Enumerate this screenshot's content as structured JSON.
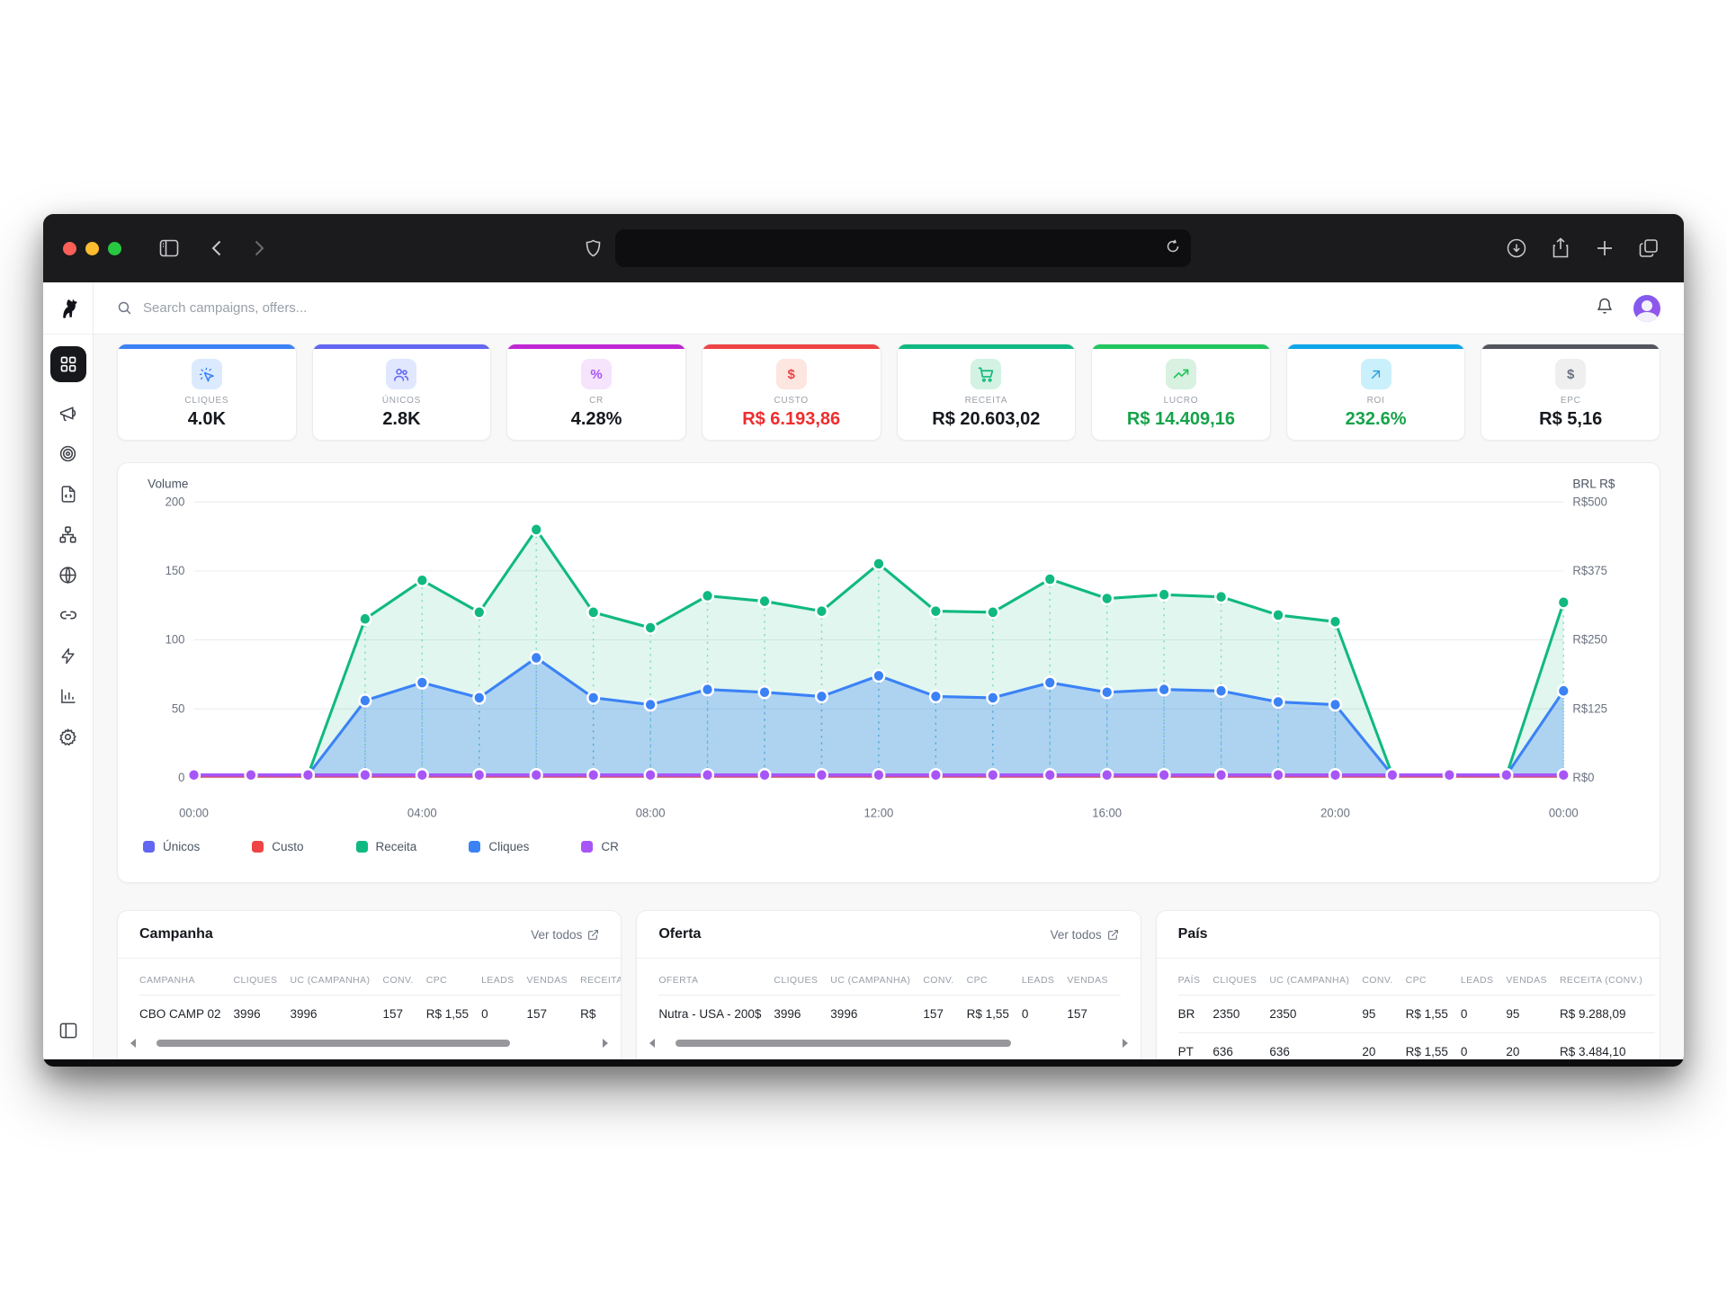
{
  "browser": {
    "traffic_lights": [
      "#ff5f57",
      "#febc2e",
      "#28c840"
    ],
    "toolbar_icons": [
      "sidebar-toggle-icon",
      "back-icon",
      "forward-icon",
      "shield-icon",
      "reload-icon",
      "download-icon",
      "share-icon",
      "new-tab-icon",
      "tabs-overview-icon"
    ],
    "url_value": ""
  },
  "header": {
    "search_placeholder": "Search campaigns, offers...",
    "icons": [
      "search-icon",
      "bell-icon",
      "avatar"
    ]
  },
  "sidebar": {
    "items": [
      "dashboard",
      "campaigns",
      "targets",
      "scripts",
      "structure",
      "domains",
      "links",
      "automation",
      "reports",
      "settings"
    ],
    "active": "dashboard",
    "bottom_icon": "panel-collapse-icon"
  },
  "stat_cards": [
    {
      "label": "CLIQUES",
      "value": "4.0K",
      "accent": "#3b82f6",
      "value_color": "#15181d",
      "icon": "cursor-click-icon",
      "icon_bg": "#dbeafe",
      "icon_color": "#3b82f6"
    },
    {
      "label": "ÚNICOS",
      "value": "2.8K",
      "accent": "#6366f1",
      "value_color": "#15181d",
      "icon": "users-icon",
      "icon_bg": "#e0e7ff",
      "icon_color": "#6366f1"
    },
    {
      "label": "CR",
      "value": "4.28%",
      "accent": "#c026d3",
      "value_color": "#15181d",
      "icon": "percent-icon",
      "icon_bg": "#f5e4fb",
      "icon_color": "#a855f7"
    },
    {
      "label": "CUSTO",
      "value": "R$ 6.193,86",
      "accent": "#ef4444",
      "value_color": "#ef2d2d",
      "icon": "dollar-icon",
      "icon_bg": "#fde5e0",
      "icon_color": "#ef4444"
    },
    {
      "label": "RECEITA",
      "value": "R$ 20.603,02",
      "accent": "#10b981",
      "value_color": "#15181d",
      "icon": "cart-icon",
      "icon_bg": "#d3f2e3",
      "icon_color": "#10b981"
    },
    {
      "label": "LUCRO",
      "value": "R$ 14.409,16",
      "accent": "#22c55e",
      "value_color": "#16a34a",
      "icon": "trending-up-icon",
      "icon_bg": "#d8f1e0",
      "icon_color": "#22c55e"
    },
    {
      "label": "ROI",
      "value": "232.6%",
      "accent": "#0ea5e9",
      "value_color": "#16a34a",
      "icon": "arrow-up-right-icon",
      "icon_bg": "#c9f0fb",
      "icon_color": "#2d9fd8"
    },
    {
      "label": "EPC",
      "value": "R$ 5,16",
      "accent": "#52555c",
      "value_color": "#15181d",
      "icon": "dollar-icon",
      "icon_bg": "#efefef",
      "icon_color": "#6b7280"
    }
  ],
  "chart_data": {
    "type": "line",
    "left_axis": {
      "title": "Volume",
      "ticks": [
        0,
        50,
        100,
        150,
        200
      ],
      "max": 200
    },
    "right_axis": {
      "title": "BRL R$",
      "ticks": [
        "R$0",
        "R$125",
        "R$250",
        "R$375",
        "R$500"
      ],
      "max": 500
    },
    "x_tick_labels": [
      "00:00",
      "04:00",
      "08:00",
      "12:00",
      "16:00",
      "20:00",
      "00:00"
    ],
    "x_tick_indices": [
      0,
      4,
      8,
      12,
      16,
      20,
      24
    ],
    "points": 25,
    "series": [
      {
        "name": "Únicos",
        "color": "#6366f1",
        "axis": "left",
        "width": 2.5,
        "dots": false,
        "fill": null,
        "values": [
          2,
          2,
          2,
          2,
          2,
          2,
          2,
          2,
          2,
          2,
          2,
          2,
          2,
          2,
          2,
          2,
          2,
          2,
          2,
          2,
          2,
          2,
          2,
          2,
          2
        ]
      },
      {
        "name": "Custo",
        "color": "#ef4444",
        "axis": "left",
        "width": 2.5,
        "dots": false,
        "fill": null,
        "values": [
          1,
          1,
          1,
          1,
          1,
          1,
          1,
          1,
          1,
          1,
          1,
          1,
          1,
          1,
          1,
          1,
          1,
          1,
          1,
          1,
          1,
          1,
          1,
          1,
          1
        ]
      },
      {
        "name": "Receita",
        "color": "#10b981",
        "axis": "right",
        "width": 3,
        "dots": true,
        "fill": "rgba(16,185,129,0.13)",
        "values": [
          5,
          5,
          5,
          288,
          358,
          300,
          450,
          300,
          272,
          330,
          320,
          302,
          388,
          302,
          300,
          360,
          325,
          332,
          328,
          295,
          283,
          5,
          5,
          5,
          318
        ]
      },
      {
        "name": "Cliques",
        "color": "#3b82f6",
        "axis": "left",
        "width": 3,
        "dots": true,
        "fill": "rgba(59,130,246,0.30)",
        "values": [
          2,
          2,
          2,
          56,
          69,
          58,
          87,
          58,
          53,
          64,
          62,
          59,
          74,
          59,
          58,
          69,
          62,
          64,
          63,
          55,
          53,
          2,
          2,
          2,
          63
        ]
      },
      {
        "name": "CR",
        "color": "#a855f7",
        "axis": "left",
        "width": 3.5,
        "dots": true,
        "fill": null,
        "values": [
          2,
          2,
          2,
          2,
          2,
          2,
          2,
          2,
          2,
          2,
          2,
          2,
          2,
          2,
          2,
          2,
          2,
          2,
          2,
          2,
          2,
          2,
          2,
          2,
          2
        ]
      }
    ],
    "legend": [
      {
        "label": "Únicos",
        "color": "#6366f1"
      },
      {
        "label": "Custo",
        "color": "#ef4444"
      },
      {
        "label": "Receita",
        "color": "#10b981"
      },
      {
        "label": "Cliques",
        "color": "#3b82f6"
      },
      {
        "label": "CR",
        "color": "#a855f7"
      }
    ]
  },
  "tables": [
    {
      "title": "Campanha",
      "link_label": "Ver todos",
      "has_link": true,
      "has_scrollbar": true,
      "thumb": [
        3,
        78
      ],
      "headers": [
        "CAMPANHA",
        "CLIQUES",
        "UC (CAMPANHA)",
        "CONV.",
        "CPC",
        "LEADS",
        "VENDAS",
        "RECEITA"
      ],
      "rows": [
        [
          "CBO CAMP 02",
          "3996",
          "3996",
          "157",
          "R$ 1,55",
          "0",
          "157",
          "R$"
        ]
      ]
    },
    {
      "title": "Oferta",
      "link_label": "Ver todos",
      "has_link": true,
      "has_scrollbar": true,
      "thumb": [
        3,
        74
      ],
      "headers": [
        "OFERTA",
        "CLIQUES",
        "UC (CAMPANHA)",
        "CONV.",
        "CPC",
        "LEADS",
        "VENDAS"
      ],
      "rows": [
        [
          "Nutra - USA - 200$",
          "3996",
          "3996",
          "157",
          "R$ 1,55",
          "0",
          "157"
        ]
      ]
    },
    {
      "title": "País",
      "link_label": "",
      "has_link": false,
      "has_scrollbar": false,
      "thumb": null,
      "headers": [
        "PAÍS",
        "CLIQUES",
        "UC (CAMPANHA)",
        "CONV.",
        "CPC",
        "LEADS",
        "VENDAS",
        "RECEITA (CONV.)"
      ],
      "rows": [
        [
          "BR",
          "2350",
          "2350",
          "95",
          "R$ 1,55",
          "0",
          "95",
          "R$ 9.288,09"
        ],
        [
          "PT",
          "636",
          "636",
          "20",
          "R$ 1,55",
          "0",
          "20",
          "R$ 3.484,10"
        ]
      ]
    }
  ]
}
